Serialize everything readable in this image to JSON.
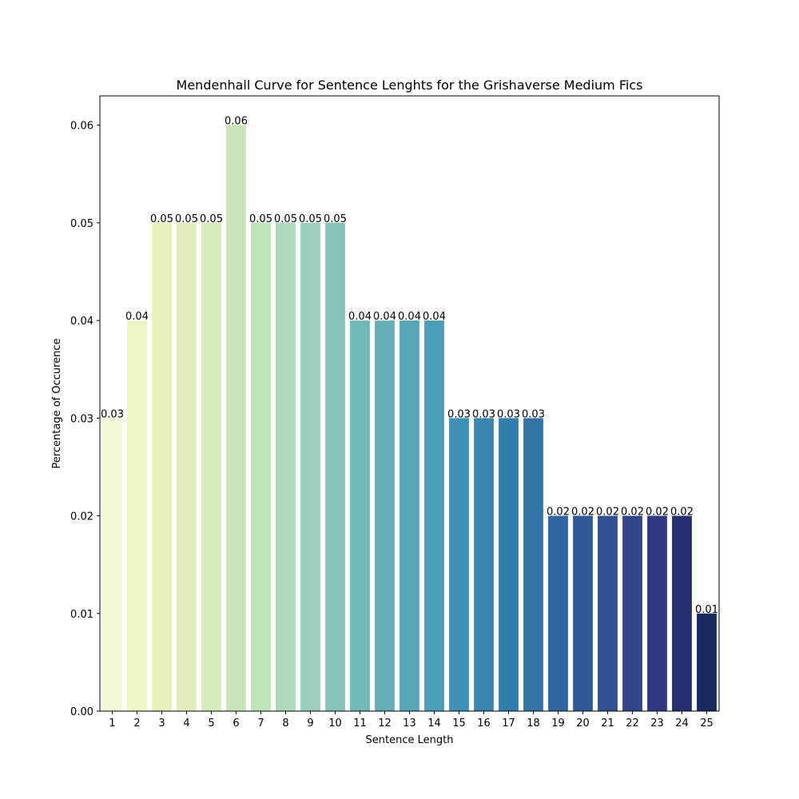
{
  "chart_data": {
    "type": "bar",
    "title": "Mendenhall Curve for Sentence Lenghts for the Grishaverse Medium Fics",
    "xlabel": "Sentence Length",
    "ylabel": "Percentage of Occurence",
    "ylim": [
      0,
      0.063
    ],
    "yticks": [
      "0.00",
      "0.01",
      "0.02",
      "0.03",
      "0.04",
      "0.05",
      "0.06"
    ],
    "grid": false,
    "categories": [
      "1",
      "2",
      "3",
      "4",
      "5",
      "6",
      "7",
      "8",
      "9",
      "10",
      "11",
      "12",
      "13",
      "14",
      "15",
      "16",
      "17",
      "18",
      "19",
      "20",
      "21",
      "22",
      "23",
      "24",
      "25"
    ],
    "values": [
      0.03,
      0.04,
      0.05,
      0.05,
      0.05,
      0.06,
      0.05,
      0.05,
      0.05,
      0.05,
      0.04,
      0.04,
      0.04,
      0.04,
      0.03,
      0.03,
      0.03,
      0.03,
      0.02,
      0.02,
      0.02,
      0.02,
      0.02,
      0.02,
      0.01
    ],
    "data_labels": [
      "0.03",
      "0.04",
      "0.05",
      "0.05",
      "0.05",
      "0.06",
      "0.05",
      "0.05",
      "0.05",
      "0.05",
      "0.04",
      "0.04",
      "0.04",
      "0.04",
      "0.03",
      "0.03",
      "0.03",
      "0.03",
      "0.02",
      "0.02",
      "0.02",
      "0.02",
      "0.02",
      "0.02",
      "0.01"
    ],
    "colors": [
      "#f3f8d3",
      "#ecf6c3",
      "#e6f2bb",
      "#dfedbb",
      "#d5ebbb",
      "#cae6b8",
      "#bfe2bb",
      "#aed9bc",
      "#9bcfba",
      "#86c4b8",
      "#70bab6",
      "#61b0b7",
      "#53a7b8",
      "#4a9fb8",
      "#3f92b7",
      "#3688b2",
      "#327fae",
      "#3174a8",
      "#3067a1",
      "#325a9b",
      "#334f93",
      "#33448b",
      "#2f3983",
      "#26316f",
      "#1b2a5e"
    ]
  }
}
